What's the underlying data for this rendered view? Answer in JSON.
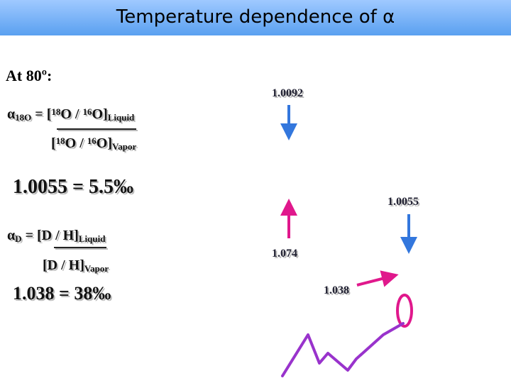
{
  "title": "Temperature dependence of α",
  "heading": "At 80º:",
  "oxygen": {
    "numerator": [
      {
        "text": "α",
        "pos": "base"
      },
      {
        "text": "18O",
        "pos": "sub"
      },
      {
        "text": " = [",
        "pos": "base"
      },
      {
        "text": "18",
        "pos": "sup"
      },
      {
        "text": "O / ",
        "pos": "base"
      },
      {
        "text": "16",
        "pos": "sup"
      },
      {
        "text": "O]",
        "pos": "base"
      },
      {
        "text": "Liquid",
        "pos": "sub"
      }
    ],
    "denominator": [
      {
        "text": "[",
        "pos": "base"
      },
      {
        "text": "18",
        "pos": "sup"
      },
      {
        "text": "O / ",
        "pos": "base"
      },
      {
        "text": "16",
        "pos": "sup"
      },
      {
        "text": "O]",
        "pos": "base"
      },
      {
        "text": "Vapor",
        "pos": "sub"
      }
    ],
    "result": "1.0055 = 5.5‰"
  },
  "deuterium": {
    "numerator": [
      {
        "text": "α",
        "pos": "base"
      },
      {
        "text": "D",
        "pos": "sub"
      },
      {
        "text": " = [D / H]",
        "pos": "base"
      },
      {
        "text": "Liquid",
        "pos": "sub"
      }
    ],
    "denominator": [
      {
        "text": "[D / H]",
        "pos": "base"
      },
      {
        "text": "Vapor",
        "pos": "sub"
      }
    ],
    "result": "1.038 = 38‰"
  },
  "diagram": {
    "labels": [
      "1.0092",
      "1.0055",
      "1.074",
      "1.038"
    ]
  }
}
